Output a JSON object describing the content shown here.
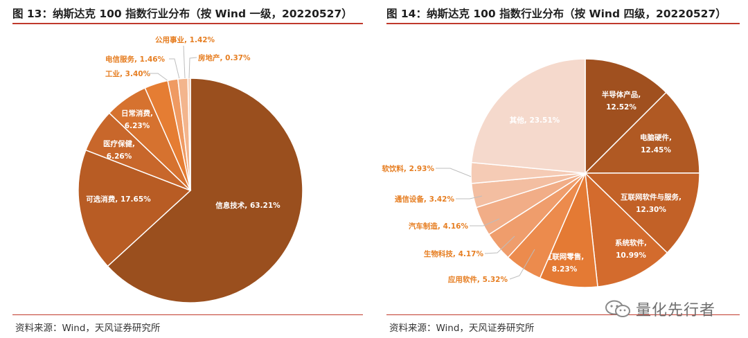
{
  "left": {
    "title": "图 13：纳斯达克 100 指数行业分布（按 Wind 一级，20220527）",
    "source": "资料来源：Wind，天风证券研究所"
  },
  "right": {
    "title": "图 14：纳斯达克 100 指数行业分布（按 Wind 四级，20220527）",
    "source": "资料来源：Wind，天风证券研究所"
  },
  "watermark": {
    "icon": "wechat-icon",
    "text": "量化先行者"
  },
  "colors": {
    "accent_line": "#c0392b",
    "label_orange": "#e67e22"
  },
  "chart_data": [
    {
      "type": "pie",
      "title": "纳斯达克 100 指数行业分布（按 Wind 一级，20220527）",
      "unit": "%",
      "slices": [
        {
          "name": "信息技术",
          "value": 63.21,
          "label": "信息技术, 63.21%",
          "color": "#9a4f1e"
        },
        {
          "name": "可选消费",
          "value": 17.65,
          "label": "可选消费, 17.65%",
          "color": "#b85c24"
        },
        {
          "name": "医疗保健",
          "value": 6.26,
          "label_lines": [
            "医疗保健,",
            "6.26%"
          ],
          "color": "#c8672b"
        },
        {
          "name": "日常消费",
          "value": 6.23,
          "label_lines": [
            "日常消费,",
            "6.23%"
          ],
          "color": "#d6722f"
        },
        {
          "name": "工业",
          "value": 3.4,
          "label": "工业, 3.40%",
          "color": "#e57d33"
        },
        {
          "name": "电信服务",
          "value": 1.46,
          "label": "电信服务, 1.46%",
          "color": "#ef9a62"
        },
        {
          "name": "公用事业",
          "value": 1.42,
          "label": "公用事业, 1.42%",
          "color": "#f3b58d"
        },
        {
          "name": "房地产",
          "value": 0.37,
          "label": "房地产, 0.37%",
          "color": "#f6cdb3"
        }
      ]
    },
    {
      "type": "pie",
      "title": "纳斯达克 100 指数行业分布（按 Wind 四级，20220527）",
      "unit": "%",
      "slices": [
        {
          "name": "半导体产品",
          "value": 12.52,
          "label_lines": [
            "半导体产品,",
            "12.52%"
          ],
          "color": "#a0501f"
        },
        {
          "name": "电脑硬件",
          "value": 12.45,
          "label_lines": [
            "电脑硬件,",
            "12.45%"
          ],
          "color": "#b05923"
        },
        {
          "name": "互联网软件与服务",
          "value": 12.3,
          "label_lines": [
            "互联网软件与服务,",
            "12.30%"
          ],
          "color": "#c26127"
        },
        {
          "name": "系统软件",
          "value": 10.99,
          "label_lines": [
            "系统软件,",
            "10.99%"
          ],
          "color": "#d36b2d"
        },
        {
          "name": "互联网零售",
          "value": 8.23,
          "label_lines": [
            "互联网零售,",
            "8.23%"
          ],
          "color": "#e47a34"
        },
        {
          "name": "应用软件",
          "value": 5.32,
          "label": "应用软件, 5.32%",
          "color": "#ec8b4d"
        },
        {
          "name": "生物科技",
          "value": 4.17,
          "label": "生物科技, 4.17%",
          "color": "#ef9d6c"
        },
        {
          "name": "汽车制造",
          "value": 4.16,
          "label": "汽车制造, 4.16%",
          "color": "#f1ad87"
        },
        {
          "name": "通信设备",
          "value": 3.42,
          "label": "通信设备, 3.42%",
          "color": "#f3bea1"
        },
        {
          "name": "软饮料",
          "value": 2.93,
          "label": "软饮料, 2.93%",
          "color": "#f5cbb5"
        },
        {
          "name": "其他",
          "value": 23.51,
          "label": "其他, 23.51%",
          "color": "#f5d9cc"
        }
      ]
    }
  ]
}
